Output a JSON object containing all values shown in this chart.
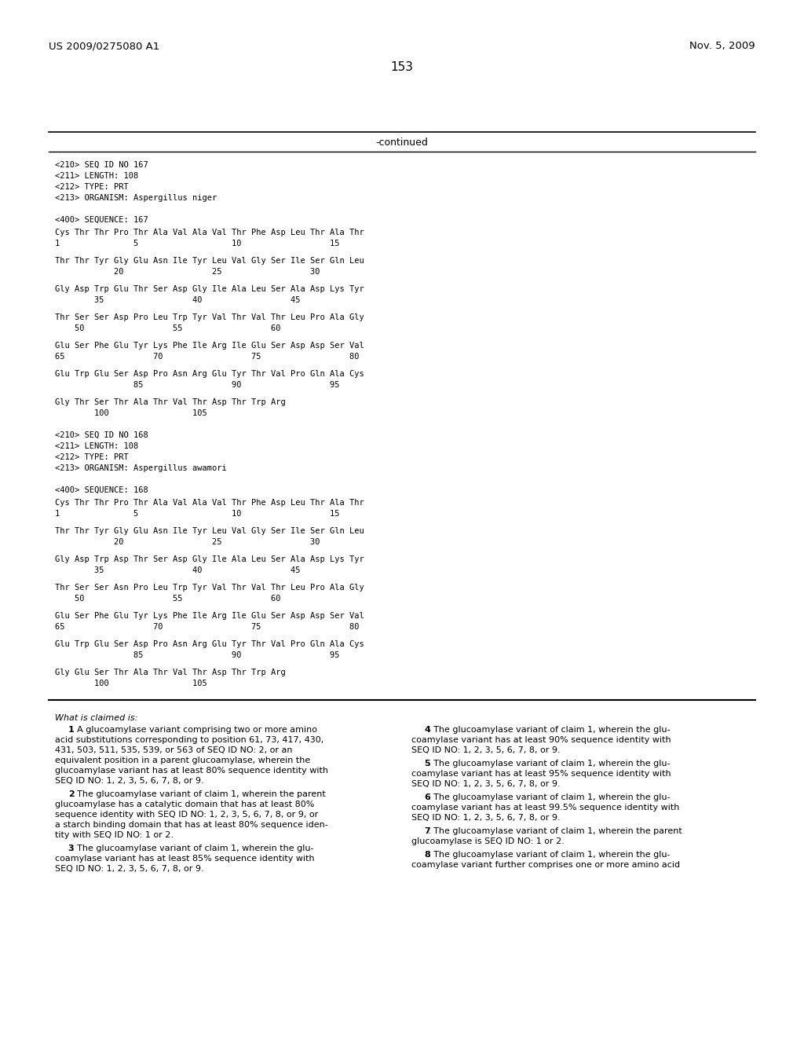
{
  "header_left": "US 2009/0275080 A1",
  "header_right": "Nov. 5, 2009",
  "page_number": "153",
  "continued_label": "-continued",
  "background_color": "#ffffff",
  "text_color": "#000000",
  "seq167_header": [
    "<210> SEQ ID NO 167",
    "<211> LENGTH: 108",
    "<212> TYPE: PRT",
    "<213> ORGANISM: Aspergillus niger",
    "",
    "<400> SEQUENCE: 167"
  ],
  "seq167_lines": [
    [
      "Cys Thr Thr Pro Thr Ala Val Ala Val Thr Phe Asp Leu Thr Ala Thr",
      "1               5                   10                  15"
    ],
    [
      "Thr Thr Tyr Gly Glu Asn Ile Tyr Leu Val Gly Ser Ile Ser Gln Leu",
      "            20                  25                  30"
    ],
    [
      "Gly Asp Trp Glu Thr Ser Asp Gly Ile Ala Leu Ser Ala Asp Lys Tyr",
      "        35                  40                  45"
    ],
    [
      "Thr Ser Ser Asp Pro Leu Trp Tyr Val Thr Val Thr Leu Pro Ala Gly",
      "    50                  55                  60"
    ],
    [
      "Glu Ser Phe Glu Tyr Lys Phe Ile Arg Ile Glu Ser Asp Asp Ser Val",
      "65                  70                  75                  80"
    ],
    [
      "Glu Trp Glu Ser Asp Pro Asn Arg Glu Tyr Thr Val Pro Gln Ala Cys",
      "                85                  90                  95"
    ],
    [
      "Gly Thr Ser Thr Ala Thr Val Thr Asp Thr Trp Arg",
      "        100                 105"
    ]
  ],
  "seq168_header": [
    "<210> SEQ ID NO 168",
    "<211> LENGTH: 108",
    "<212> TYPE: PRT",
    "<213> ORGANISM: Aspergillus awamori",
    "",
    "<400> SEQUENCE: 168"
  ],
  "seq168_lines": [
    [
      "Cys Thr Thr Pro Thr Ala Val Ala Val Thr Phe Asp Leu Thr Ala Thr",
      "1               5                   10                  15"
    ],
    [
      "Thr Thr Tyr Gly Glu Asn Ile Tyr Leu Val Gly Ser Ile Ser Gln Leu",
      "            20                  25                  30"
    ],
    [
      "Gly Asp Trp Asp Thr Ser Asp Gly Ile Ala Leu Ser Ala Asp Lys Tyr",
      "        35                  40                  45"
    ],
    [
      "Thr Ser Ser Asn Pro Leu Trp Tyr Val Thr Val Thr Leu Pro Ala Gly",
      "    50                  55                  60"
    ],
    [
      "Glu Ser Phe Glu Tyr Lys Phe Ile Arg Ile Glu Ser Asp Asp Ser Val",
      "65                  70                  75                  80"
    ],
    [
      "Glu Trp Glu Ser Asp Pro Asn Arg Glu Tyr Thr Val Pro Gln Ala Cys",
      "                85                  90                  95"
    ],
    [
      "Gly Glu Ser Thr Ala Thr Val Thr Asp Thr Trp Arg",
      "        100                 105"
    ]
  ],
  "claims_header": "What is claimed is:",
  "claims_col1": [
    [
      "    ",
      "1",
      ". A glucoamylase variant comprising two or more amino"
    ],
    [
      "acid substitutions corresponding to position 61, 73, 417, 430,",
      "",
      ""
    ],
    [
      "431, 503, 511, 535, 539, or 563 of SEQ ID NO: 2, or an",
      "",
      ""
    ],
    [
      "equivalent position in a parent glucoamylase, wherein the",
      "",
      ""
    ],
    [
      "glucoamylase variant has at least 80% sequence identity with",
      "",
      ""
    ],
    [
      "SEQ ID NO: 1, 2, 3, 5, 6, 7, 8, or 9.",
      "",
      ""
    ],
    [
      "",
      "",
      ""
    ],
    [
      "    ",
      "2",
      ". The glucoamylase variant of claim 1, wherein the parent"
    ],
    [
      "glucoamylase has a catalytic domain that has at least 80%",
      "",
      ""
    ],
    [
      "sequence identity with SEQ ID NO: 1, 2, 3, 5, 6, 7, 8, or 9, or",
      "",
      ""
    ],
    [
      "a starch binding domain that has at least 80% sequence iden-",
      "",
      ""
    ],
    [
      "tity with SEQ ID NO: 1 or 2.",
      "",
      ""
    ],
    [
      "",
      "",
      ""
    ],
    [
      "    ",
      "3",
      ". The glucoamylase variant of claim 1, wherein the glu-"
    ],
    [
      "coamylase variant has at least 85% sequence identity with",
      "",
      ""
    ],
    [
      "SEQ ID NO: 1, 2, 3, 5, 6, 7, 8, or 9.",
      "",
      ""
    ]
  ],
  "claims_col2": [
    [
      "    ",
      "4",
      ". The glucoamylase variant of claim 1, wherein the glu-"
    ],
    [
      "coamylase variant has at least 90% sequence identity with",
      "",
      ""
    ],
    [
      "SEQ ID NO: 1, 2, 3, 5, 6, 7, 8, or 9.",
      "",
      ""
    ],
    [
      "",
      "",
      ""
    ],
    [
      "    ",
      "5",
      ". The glucoamylase variant of claim 1, wherein the glu-"
    ],
    [
      "coamylase variant has at least 95% sequence identity with",
      "",
      ""
    ],
    [
      "SEQ ID NO: 1, 2, 3, 5, 6, 7, 8, or 9.",
      "",
      ""
    ],
    [
      "",
      "",
      ""
    ],
    [
      "    ",
      "6",
      ". The glucoamylase variant of claim 1, wherein the glu-"
    ],
    [
      "coamylase variant has at least 99.5% sequence identity with",
      "",
      ""
    ],
    [
      "SEQ ID NO: 1, 2, 3, 5, 6, 7, 8, or 9.",
      "",
      ""
    ],
    [
      "",
      "",
      ""
    ],
    [
      "    ",
      "7",
      ". The glucoamylase variant of claim 1, wherein the parent"
    ],
    [
      "glucoamylase is SEQ ID NO: 1 or 2.",
      "",
      ""
    ],
    [
      "",
      "",
      ""
    ],
    [
      "    ",
      "8",
      ". The glucoamylase variant of claim 1, wherein the glu-"
    ],
    [
      "coamylase variant further comprises one or more amino acid",
      "",
      ""
    ]
  ]
}
